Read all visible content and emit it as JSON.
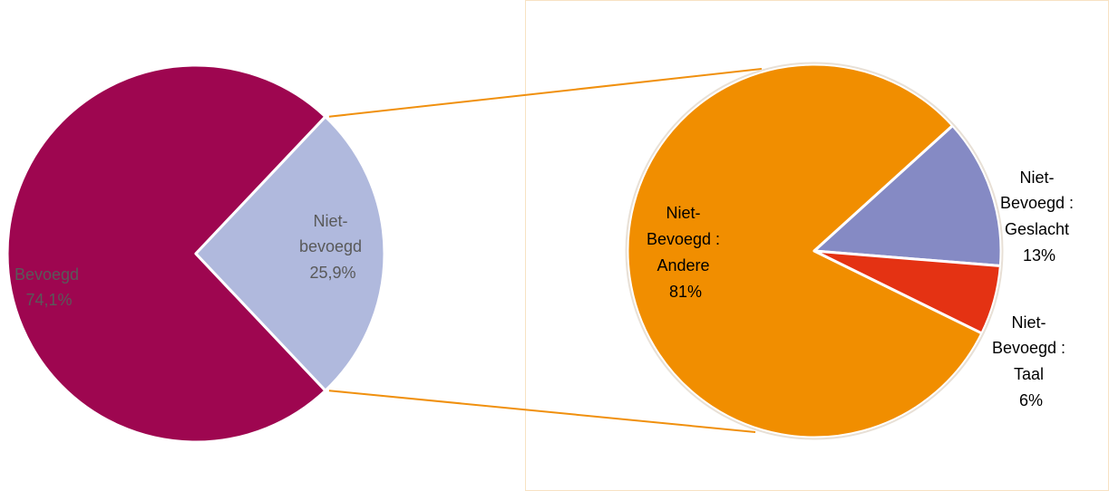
{
  "chart_data": [
    {
      "type": "pie",
      "title": "",
      "slices": [
        {
          "label": "Bevoegd",
          "value": 74.1,
          "value_label": "74,1%",
          "color": "#9e0650",
          "text_color": "#595959"
        },
        {
          "label": "Niet-bevoegd",
          "value": 25.9,
          "value_label": "25,9%",
          "color": "#b0b9dd",
          "text_color": "#595959"
        }
      ]
    },
    {
      "type": "pie",
      "title": "",
      "detail_of": "Niet-bevoegd",
      "slices": [
        {
          "label": "Niet-Bevoegd : Andere",
          "value": 81,
          "value_label": "81%",
          "color": "#f18e00",
          "text_color": "#000000"
        },
        {
          "label": "Niet-Bevoegd : Geslacht",
          "value": 13,
          "value_label": "13%",
          "color": "#858ac4",
          "text_color": "#000000"
        },
        {
          "label": "Niet-Bevoegd : Taal",
          "value": 6,
          "value_label": "6%",
          "color": "#e43213",
          "text_color": "#000000"
        }
      ]
    }
  ],
  "colors": {
    "connector": "#f0900e",
    "box_border": "#f7e2c3",
    "inner_border": "#e8e0d6"
  }
}
